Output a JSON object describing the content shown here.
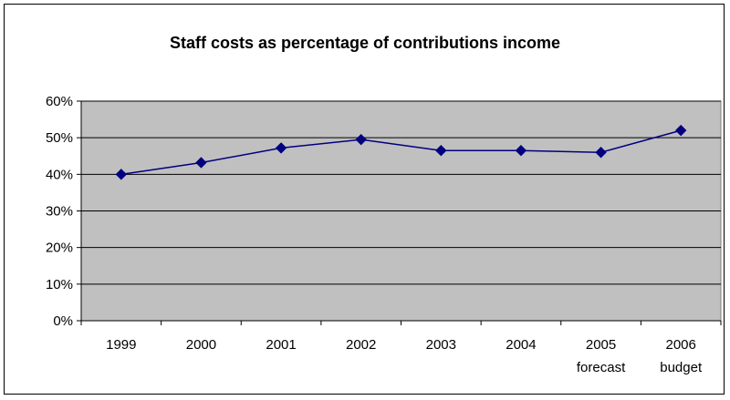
{
  "chart_data": {
    "type": "line",
    "title": "Staff costs as percentage of contributions income",
    "xlabel": "",
    "ylabel": "",
    "categories": [
      [
        "1999"
      ],
      [
        "2000"
      ],
      [
        "2001"
      ],
      [
        "2002"
      ],
      [
        "2003"
      ],
      [
        "2004"
      ],
      [
        "2005",
        "forecast"
      ],
      [
        "2006",
        "budget"
      ]
    ],
    "series": [
      {
        "values": [
          0.4,
          0.432,
          0.472,
          0.495,
          0.465,
          0.465,
          0.46,
          0.52
        ]
      }
    ],
    "ylim": [
      0,
      0.6
    ],
    "yticks": [
      0,
      0.1,
      0.2,
      0.3,
      0.4,
      0.5,
      0.6
    ],
    "ytick_labels": [
      "0%",
      "10%",
      "20%",
      "30%",
      "40%",
      "50%",
      "60%"
    ],
    "grid": true,
    "legend": "none",
    "colors": {
      "plot_background": "#c0c0c0",
      "line": "#000080",
      "marker": "#000080",
      "gridline": "#000000"
    }
  }
}
